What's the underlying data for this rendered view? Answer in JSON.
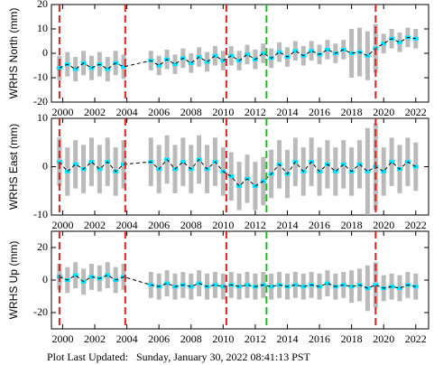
{
  "chart_data": [
    {
      "type": "scatter",
      "ylabel": "WRHS North (mm)",
      "x": [
        1999.8,
        2000.3,
        2000.8,
        2001.3,
        2001.8,
        2002.3,
        2002.8,
        2003.3,
        2003.8,
        2005.5,
        2006.0,
        2006.5,
        2007.0,
        2007.5,
        2008.0,
        2008.5,
        2009.0,
        2009.5,
        2010.0,
        2010.5,
        2011.0,
        2011.5,
        2012.0,
        2012.5,
        2013.0,
        2013.5,
        2014.0,
        2014.5,
        2015.0,
        2015.5,
        2016.0,
        2016.5,
        2017.0,
        2017.5,
        2018.0,
        2018.5,
        2019.0,
        2019.5,
        2020.0,
        2020.5,
        2021.0,
        2021.5,
        2022.0
      ],
      "values": [
        -6,
        -4.5,
        -6.5,
        -4,
        -6,
        -4.5,
        -6.5,
        -4,
        -5.5,
        -3,
        -5,
        -2.5,
        -4.5,
        -2,
        -4,
        -1.5,
        -3.5,
        -1,
        -3,
        -1,
        -3,
        -0.5,
        -2.5,
        0,
        -2,
        0.5,
        -1.5,
        1,
        -1,
        1,
        -0.5,
        1.5,
        0,
        1.5,
        0,
        0.5,
        -1,
        2,
        4,
        6,
        4.5,
        6.5,
        6
      ],
      "errors": [
        5,
        5,
        5,
        5,
        5,
        5,
        5,
        5,
        5,
        4,
        4,
        4,
        4,
        4,
        4,
        4,
        4,
        4,
        4,
        4,
        4,
        4,
        4,
        4,
        4,
        4,
        4,
        4,
        4,
        4,
        4,
        4,
        4,
        4,
        10,
        10,
        10,
        10,
        4,
        4,
        4,
        4,
        4
      ],
      "color": "#00e5ff",
      "error_color": "#aaaaaa",
      "xlim": [
        1999.3,
        2022.8
      ],
      "xticks": [
        2000,
        2002,
        2004,
        2006,
        2008,
        2010,
        2012,
        2014,
        2016,
        2018,
        2020,
        2022
      ],
      "ylim": [
        -20,
        20
      ],
      "yticks": [
        -20,
        -10,
        0,
        10,
        20
      ],
      "events": [
        {
          "x": 1999.8,
          "color": "#dd2222"
        },
        {
          "x": 2003.9,
          "color": "#dd2222"
        },
        {
          "x": 2010.2,
          "color": "#dd2222"
        },
        {
          "x": 2012.7,
          "color": "#22bb22"
        },
        {
          "x": 2019.5,
          "color": "#dd2222"
        }
      ]
    },
    {
      "type": "scatter",
      "ylabel": "WRHS East (mm)",
      "x": [
        1999.8,
        2000.3,
        2000.8,
        2001.3,
        2001.8,
        2002.3,
        2002.8,
        2003.3,
        2003.8,
        2005.5,
        2006.0,
        2006.5,
        2007.0,
        2007.5,
        2008.0,
        2008.5,
        2009.0,
        2009.5,
        2010.0,
        2010.5,
        2011.0,
        2011.5,
        2012.0,
        2012.5,
        2013.0,
        2013.5,
        2014.0,
        2014.5,
        2015.0,
        2015.5,
        2016.0,
        2016.5,
        2017.0,
        2017.5,
        2018.0,
        2018.5,
        2019.0,
        2019.5,
        2020.0,
        2020.5,
        2021.0,
        2021.5,
        2022.0
      ],
      "values": [
        1,
        -1,
        0.5,
        -0.5,
        1,
        -0.5,
        1,
        -1,
        0.5,
        1,
        -0.5,
        1.5,
        -0.5,
        1,
        -0.5,
        1.5,
        -0.5,
        1,
        -1,
        -2,
        -4,
        -2.5,
        -4,
        -3,
        -1.5,
        0.5,
        -1.5,
        1,
        -1,
        1,
        -1,
        0.5,
        -1,
        0.5,
        -1,
        0.5,
        -1,
        0,
        -1,
        1,
        -0.5,
        1,
        0
      ],
      "errors": [
        5,
        5,
        5,
        5,
        5,
        5,
        5,
        5,
        5,
        5,
        5,
        5,
        5,
        5,
        5,
        5,
        5,
        5,
        5,
        5,
        5,
        5,
        5,
        5,
        5,
        5,
        5,
        5,
        5,
        5,
        5,
        5,
        5,
        5,
        5,
        5,
        9,
        9,
        5,
        5,
        5,
        5,
        5
      ],
      "color": "#00e5ff",
      "error_color": "#aaaaaa",
      "xlim": [
        1999.3,
        2022.8
      ],
      "xticks": [
        2000,
        2002,
        2004,
        2006,
        2008,
        2010,
        2012,
        2014,
        2016,
        2018,
        2020,
        2022
      ],
      "ylim": [
        -10,
        10
      ],
      "yticks": [
        -10,
        0,
        10
      ],
      "events": [
        {
          "x": 1999.8,
          "color": "#dd2222"
        },
        {
          "x": 2003.9,
          "color": "#dd2222"
        },
        {
          "x": 2010.2,
          "color": "#dd2222"
        },
        {
          "x": 2012.7,
          "color": "#22bb22"
        },
        {
          "x": 2019.5,
          "color": "#dd2222"
        }
      ]
    },
    {
      "type": "scatter",
      "ylabel": "WRHS Up (mm)",
      "x": [
        1999.8,
        2000.3,
        2000.8,
        2001.3,
        2001.8,
        2002.3,
        2002.8,
        2003.3,
        2003.8,
        2005.5,
        2006.0,
        2006.5,
        2007.0,
        2007.5,
        2008.0,
        2008.5,
        2009.0,
        2009.5,
        2010.0,
        2010.5,
        2011.0,
        2011.5,
        2012.0,
        2012.5,
        2013.0,
        2013.5,
        2014.0,
        2014.5,
        2015.0,
        2015.5,
        2016.0,
        2016.5,
        2017.0,
        2017.5,
        2018.0,
        2018.5,
        2019.0,
        2019.5,
        2020.0,
        2020.5,
        2021.0,
        2021.5,
        2022.0
      ],
      "values": [
        2,
        0,
        3,
        -1,
        2,
        1,
        3,
        0,
        2,
        -3,
        -4,
        -2,
        -4,
        -3,
        -4,
        -2,
        -4,
        -3,
        -4,
        -3,
        -4,
        -3,
        -4,
        -3,
        -4,
        -3,
        -4,
        -3,
        -4,
        -3,
        -4,
        -2,
        -4,
        -3,
        -4,
        -3,
        -5,
        -3,
        -5,
        -4,
        -5,
        -3,
        -4
      ],
      "errors": [
        8,
        8,
        8,
        8,
        8,
        8,
        8,
        8,
        8,
        8,
        8,
        8,
        8,
        8,
        8,
        8,
        8,
        8,
        8,
        8,
        8,
        8,
        8,
        8,
        8,
        8,
        8,
        8,
        8,
        8,
        8,
        8,
        8,
        8,
        10,
        10,
        14,
        14,
        8,
        8,
        8,
        8,
        8
      ],
      "color": "#00e5ff",
      "error_color": "#aaaaaa",
      "xlim": [
        1999.3,
        2022.8
      ],
      "xticks": [
        2000,
        2002,
        2004,
        2006,
        2008,
        2010,
        2012,
        2014,
        2016,
        2018,
        2020,
        2022
      ],
      "ylim": [
        -30,
        30
      ],
      "yticks": [
        -20,
        0,
        20
      ],
      "events": [
        {
          "x": 1999.8,
          "color": "#dd2222"
        },
        {
          "x": 2003.9,
          "color": "#dd2222"
        },
        {
          "x": 2010.2,
          "color": "#dd2222"
        },
        {
          "x": 2012.7,
          "color": "#22bb22"
        },
        {
          "x": 2019.5,
          "color": "#dd2222"
        }
      ]
    }
  ],
  "footer": "Plot Last Updated:   Sunday, January 30, 2022 08:41:13 PST"
}
